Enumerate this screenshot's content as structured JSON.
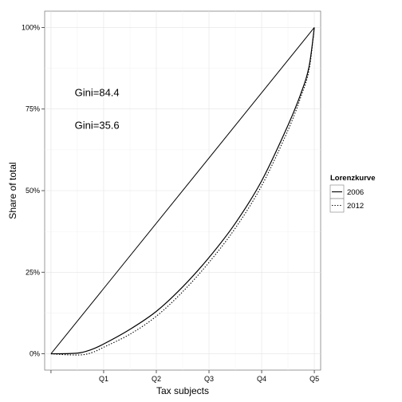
{
  "chart_data": {
    "type": "line",
    "xlabel": "Tax subjects",
    "ylabel": "Share of total",
    "xlim": [
      -0.12,
      5.12
    ],
    "ylim": [
      -5,
      105
    ],
    "x_ticks": [
      0,
      1,
      2,
      3,
      4,
      5
    ],
    "x_tick_labels": [
      "",
      "Q1",
      "Q2",
      "Q3",
      "Q4",
      "Q5"
    ],
    "y_ticks": [
      0,
      25,
      50,
      75,
      100
    ],
    "y_tick_labels": [
      "0%",
      "25%",
      "50%",
      "75%",
      "100%"
    ],
    "grid": true,
    "annotations": [
      {
        "text": "Gini=84.4",
        "x": 0.45,
        "y": 79
      },
      {
        "text": "Gini=35.6",
        "x": 0.45,
        "y": 69
      }
    ],
    "legend": {
      "title": "Lorenzkurve",
      "position": "right"
    },
    "equality_line": {
      "x": [
        0,
        5
      ],
      "y": [
        0,
        100
      ]
    },
    "series": [
      {
        "name": "2006",
        "linetype": "solid",
        "x": [
          0,
          0.5,
          0.75,
          1.0,
          1.5,
          2.0,
          2.5,
          3.0,
          3.5,
          4.0,
          4.5,
          4.75,
          4.9,
          5.0
        ],
        "y": [
          0,
          0.2,
          1.2,
          3.0,
          7.5,
          13.0,
          20.5,
          29.5,
          40.0,
          53.0,
          70.0,
          80.0,
          88.0,
          100
        ]
      },
      {
        "name": "2012",
        "linetype": "dotted",
        "x": [
          0,
          0.3,
          0.6,
          0.8,
          1.0,
          1.5,
          2.0,
          2.5,
          3.0,
          3.5,
          4.0,
          4.5,
          4.75,
          4.9,
          5.0
        ],
        "y": [
          0,
          -0.3,
          -0.3,
          0.5,
          2.0,
          6.0,
          11.5,
          19.0,
          28.0,
          38.5,
          51.5,
          68.5,
          79.0,
          87.0,
          100
        ]
      }
    ]
  }
}
